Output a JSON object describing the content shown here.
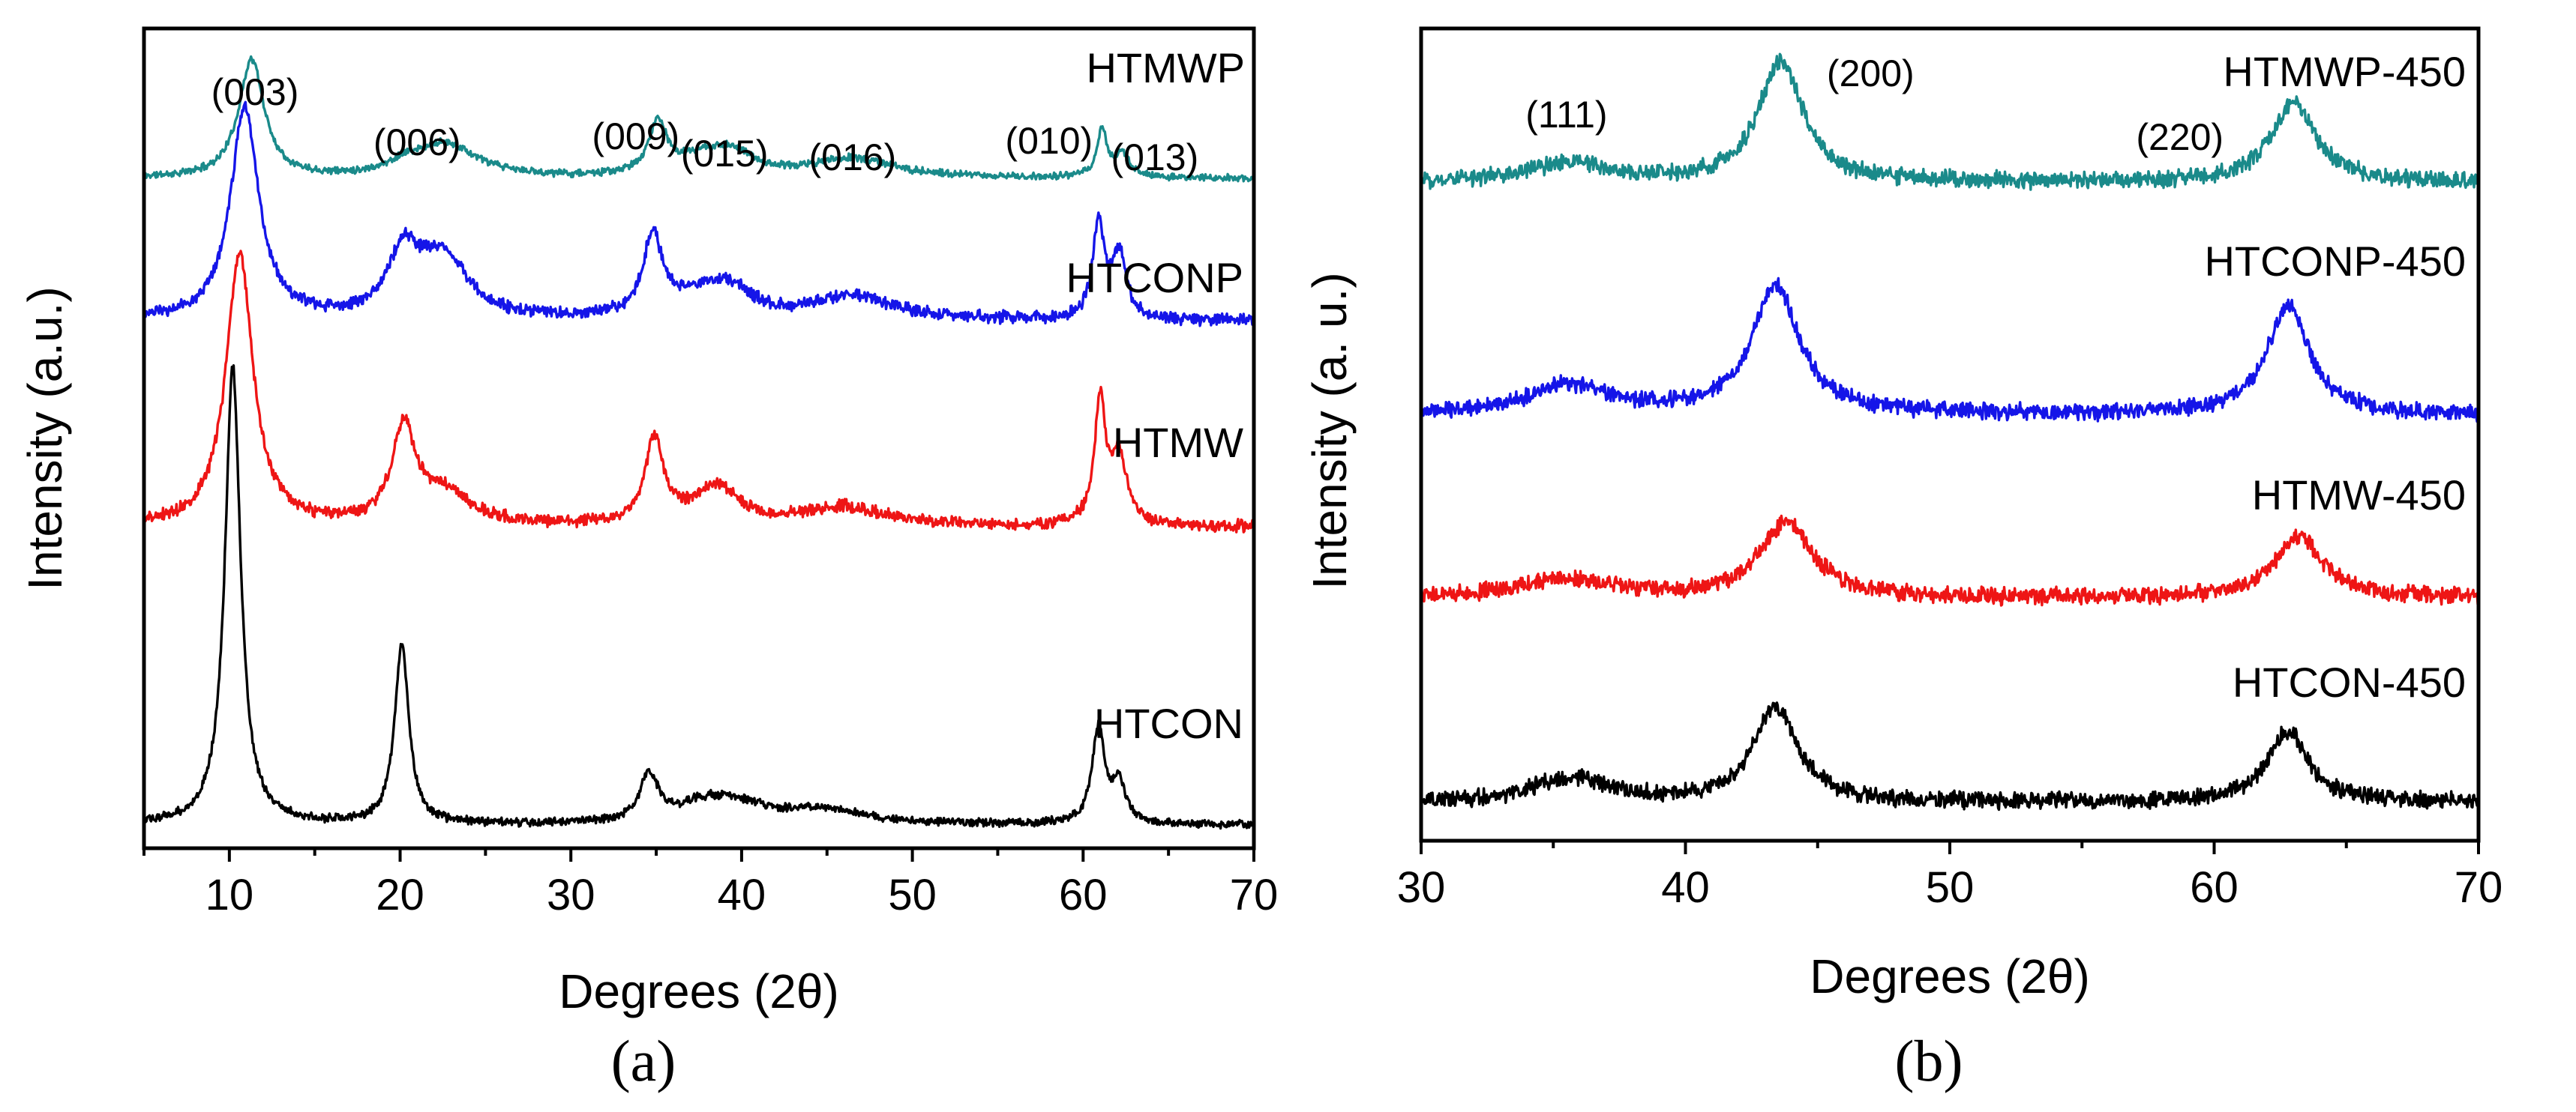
{
  "chart_data": [
    {
      "id": "a",
      "panel_label": "(a)",
      "type": "line",
      "title": "",
      "xlabel": "Degrees (2θ)",
      "ylabel": "Intensity (a.u.)",
      "xlim": [
        5,
        70
      ],
      "xticks": [
        10,
        20,
        30,
        40,
        50,
        60,
        70
      ],
      "xtick_labels": [
        "10",
        "20",
        "30",
        "40",
        "50",
        "60",
        "70"
      ],
      "x_minor_step": 5,
      "yticks": "none",
      "grid": false,
      "series": [
        {
          "name": "HTMWP",
          "color": "#1a8a8a",
          "baseline": 0.05,
          "noise": 0.006,
          "seed": 11,
          "peaks": [
            [
              11.3,
              0.25,
              0.9
            ],
            [
              20.3,
              0.02,
              1.2
            ],
            [
              22.7,
              0.07,
              2.2
            ],
            [
              35.1,
              0.11,
              0.65
            ],
            [
              37.5,
              0.03,
              1.5
            ],
            [
              39.4,
              0.05,
              1.6
            ],
            [
              46.5,
              0.04,
              3.0
            ],
            [
              61.1,
              0.1,
              0.35
            ],
            [
              62.3,
              0.05,
              0.5
            ]
          ]
        },
        {
          "name": "HTCONP",
          "color": "#1515e8",
          "baseline": 0.05,
          "noise": 0.01,
          "seed": 23,
          "peaks": [
            [
              10.9,
              0.45,
              1.0
            ],
            [
              20.2,
              0.13,
              1.1
            ],
            [
              22.5,
              0.13,
              1.7
            ],
            [
              34.8,
              0.17,
              0.7
            ],
            [
              37.3,
              0.04,
              1.5
            ],
            [
              39.3,
              0.06,
              1.6
            ],
            [
              46.5,
              0.05,
              3.0
            ],
            [
              60.9,
              0.2,
              0.4
            ],
            [
              62.1,
              0.14,
              0.5
            ]
          ]
        },
        {
          "name": "HTMW",
          "color": "#ee1515",
          "baseline": 0.05,
          "noise": 0.01,
          "seed": 37,
          "peaks": [
            [
              10.6,
              0.58,
              0.95
            ],
            [
              20.2,
              0.2,
              0.8
            ],
            [
              22.5,
              0.07,
              1.8
            ],
            [
              34.9,
              0.18,
              0.65
            ],
            [
              38.5,
              0.08,
              1.6
            ],
            [
              46.0,
              0.04,
              3.0
            ],
            [
              61.0,
              0.26,
              0.4
            ],
            [
              62.1,
              0.14,
              0.55
            ]
          ]
        },
        {
          "name": "HTCON",
          "color": "#000000",
          "baseline": 0.03,
          "noise": 0.007,
          "seed": 53,
          "peaks": [
            [
              10.2,
              0.97,
              0.55
            ],
            [
              20.1,
              0.38,
              0.5
            ],
            [
              34.6,
              0.1,
              0.65
            ],
            [
              37.6,
              0.03,
              1.6
            ],
            [
              39.6,
              0.04,
              2.2
            ],
            [
              44.7,
              0.03,
              3.0
            ],
            [
              60.9,
              0.2,
              0.45
            ],
            [
              62.1,
              0.08,
              0.5
            ]
          ]
        }
      ],
      "annotations": [
        {
          "text": "(003)",
          "x": 11.5
        },
        {
          "text": "(006)",
          "x": 21.0
        },
        {
          "text": "(009)",
          "x": 33.8
        },
        {
          "text": "(015)",
          "x": 39.0
        },
        {
          "text": "(016)",
          "x": 46.5
        },
        {
          "text": "(010)",
          "x": 58.0
        },
        {
          "text": "(013)",
          "x": 64.2
        }
      ]
    },
    {
      "id": "b",
      "panel_label": "(b)",
      "type": "line",
      "title": "",
      "xlabel": "Degrees (2θ)",
      "ylabel": "Intensity (a. u.)",
      "xlim": [
        30,
        70
      ],
      "xticks": [
        30,
        40,
        50,
        60,
        70
      ],
      "xtick_labels": [
        "30",
        "40",
        "50",
        "60",
        "70"
      ],
      "x_minor_step": 5,
      "yticks": "none",
      "grid": false,
      "series": [
        {
          "name": "HTMWP-450",
          "color": "#1a8a8a",
          "baseline": 0.05,
          "noise": 0.014,
          "seed": 71,
          "peaks": [
            [
              35.6,
              0.04,
              1.8
            ],
            [
              43.6,
              0.26,
              1.0
            ],
            [
              63.0,
              0.17,
              1.0
            ]
          ]
        },
        {
          "name": "HTCONP-450",
          "color": "#1515e8",
          "baseline": 0.05,
          "noise": 0.014,
          "seed": 83,
          "peaks": [
            [
              35.6,
              0.06,
              1.9
            ],
            [
              43.4,
              0.27,
              1.1
            ],
            [
              62.8,
              0.23,
              0.95
            ]
          ]
        },
        {
          "name": "HTMW-450",
          "color": "#ee1515",
          "baseline": 0.05,
          "noise": 0.014,
          "seed": 97,
          "peaks": [
            [
              35.6,
              0.04,
              2.2
            ],
            [
              43.8,
              0.16,
              1.2
            ],
            [
              63.2,
              0.13,
              1.1
            ]
          ]
        },
        {
          "name": "HTCON-450",
          "color": "#000000",
          "baseline": 0.03,
          "noise": 0.014,
          "seed": 109,
          "peaks": [
            [
              35.7,
              0.05,
              1.8
            ],
            [
              43.4,
              0.2,
              1.0
            ],
            [
              62.8,
              0.15,
              0.95
            ]
          ]
        }
      ],
      "annotations": [
        {
          "text": "(111)",
          "x": 35.5
        },
        {
          "text": "(200)",
          "x": 47.0
        },
        {
          "text": "(220)",
          "x": 58.7
        }
      ]
    }
  ]
}
